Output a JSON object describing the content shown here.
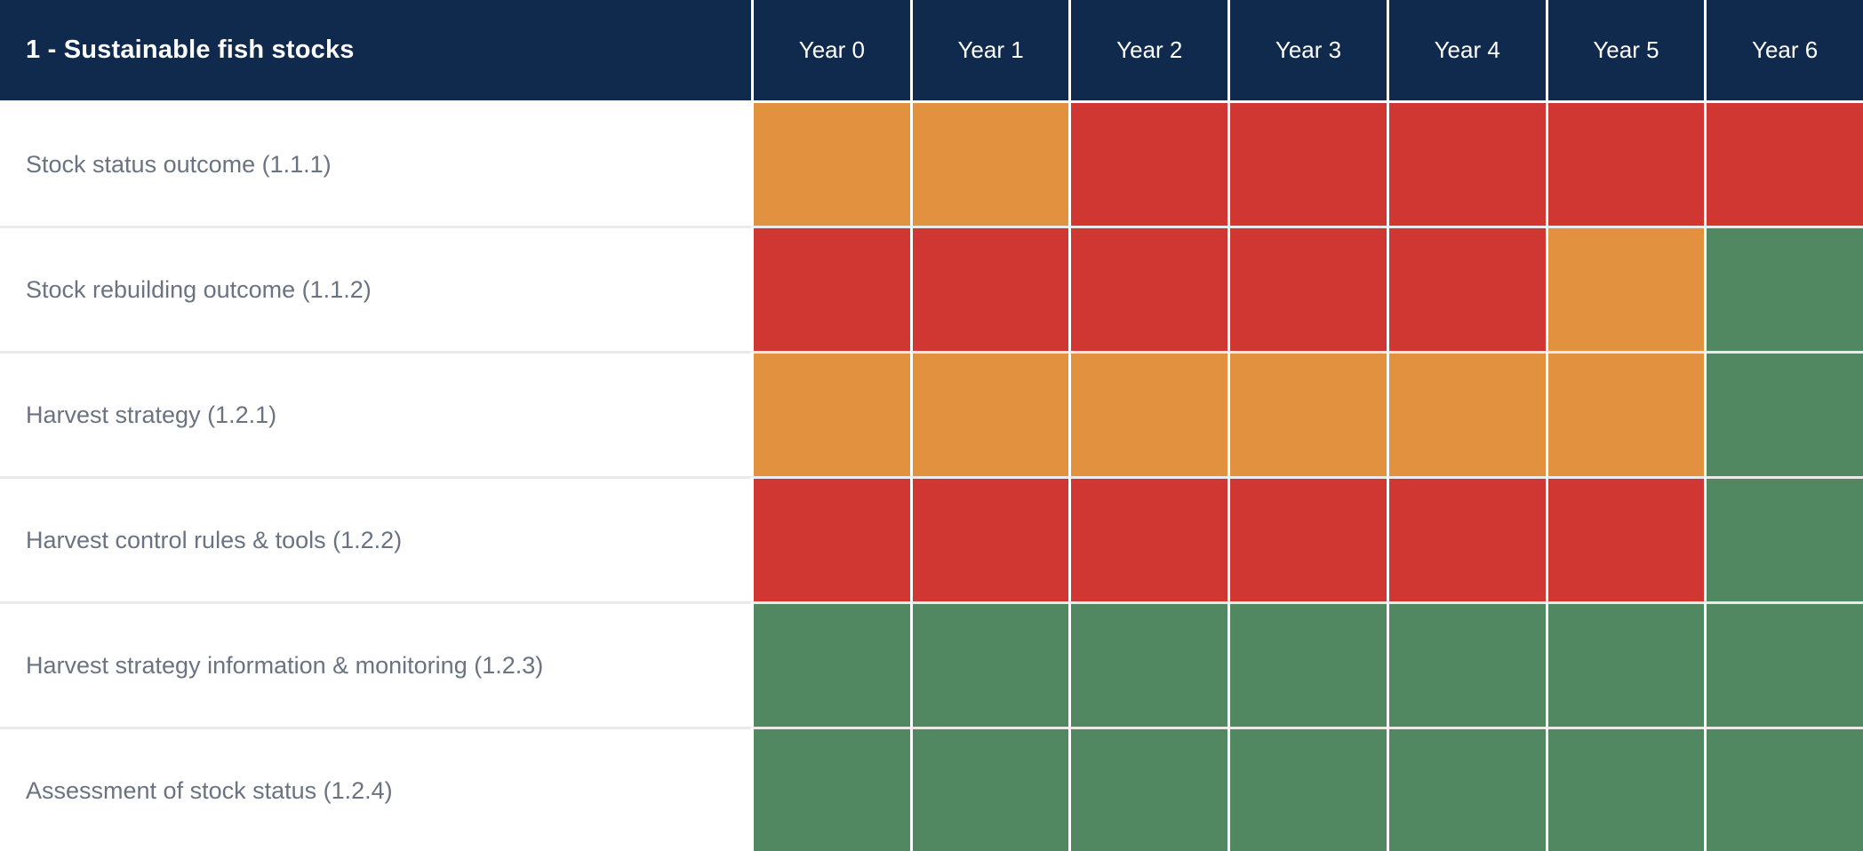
{
  "table": {
    "title": "1 - Sustainable fish stocks",
    "years": [
      "Year 0",
      "Year 1",
      "Year 2",
      "Year 3",
      "Year 4",
      "Year 5",
      "Year 6"
    ],
    "rows": [
      {
        "label": "Stock status outcome (1.1.1)",
        "statuses": [
          "orange",
          "orange",
          "red",
          "red",
          "red",
          "red",
          "red"
        ]
      },
      {
        "label": "Stock rebuilding outcome (1.1.2)",
        "statuses": [
          "red",
          "red",
          "red",
          "red",
          "red",
          "orange",
          "green"
        ]
      },
      {
        "label": "Harvest strategy (1.2.1)",
        "statuses": [
          "orange",
          "orange",
          "orange",
          "orange",
          "orange",
          "orange",
          "green"
        ]
      },
      {
        "label": "Harvest control rules & tools (1.2.2)",
        "statuses": [
          "red",
          "red",
          "red",
          "red",
          "red",
          "red",
          "green"
        ]
      },
      {
        "label": "Harvest strategy information & monitoring (1.2.3)",
        "statuses": [
          "green",
          "green",
          "green",
          "green",
          "green",
          "green",
          "green"
        ]
      },
      {
        "label": "Assessment of stock status (1.2.4)",
        "statuses": [
          "green",
          "green",
          "green",
          "green",
          "green",
          "green",
          "green"
        ]
      }
    ]
  },
  "colors": {
    "header_bg": "#102A4E",
    "header_text": "#FFFFFF",
    "row_label_text": "#6A7381",
    "orange": "#E2923E",
    "red": "#D13732",
    "green": "#518761",
    "grid_line": "#FFFFFF",
    "row_separator": "#EAEAEA"
  },
  "chart_data": {
    "type": "heatmap",
    "title": "1 - Sustainable fish stocks",
    "x": [
      "Year 0",
      "Year 1",
      "Year 2",
      "Year 3",
      "Year 4",
      "Year 5",
      "Year 6"
    ],
    "y": [
      "Stock status outcome (1.1.1)",
      "Stock rebuilding outcome (1.1.2)",
      "Harvest strategy (1.2.1)",
      "Harvest control rules & tools (1.2.2)",
      "Harvest strategy information & monitoring (1.2.3)",
      "Assessment of stock status (1.2.4)"
    ],
    "values": [
      [
        "orange",
        "orange",
        "red",
        "red",
        "red",
        "red",
        "red"
      ],
      [
        "red",
        "red",
        "red",
        "red",
        "red",
        "orange",
        "green"
      ],
      [
        "orange",
        "orange",
        "orange",
        "orange",
        "orange",
        "orange",
        "green"
      ],
      [
        "red",
        "red",
        "red",
        "red",
        "red",
        "red",
        "green"
      ],
      [
        "green",
        "green",
        "green",
        "green",
        "green",
        "green",
        "green"
      ],
      [
        "green",
        "green",
        "green",
        "green",
        "green",
        "green",
        "green"
      ]
    ],
    "value_colors": {
      "orange": "#E2923E",
      "red": "#D13732",
      "green": "#518761"
    },
    "legend": "none",
    "grid": "on"
  }
}
